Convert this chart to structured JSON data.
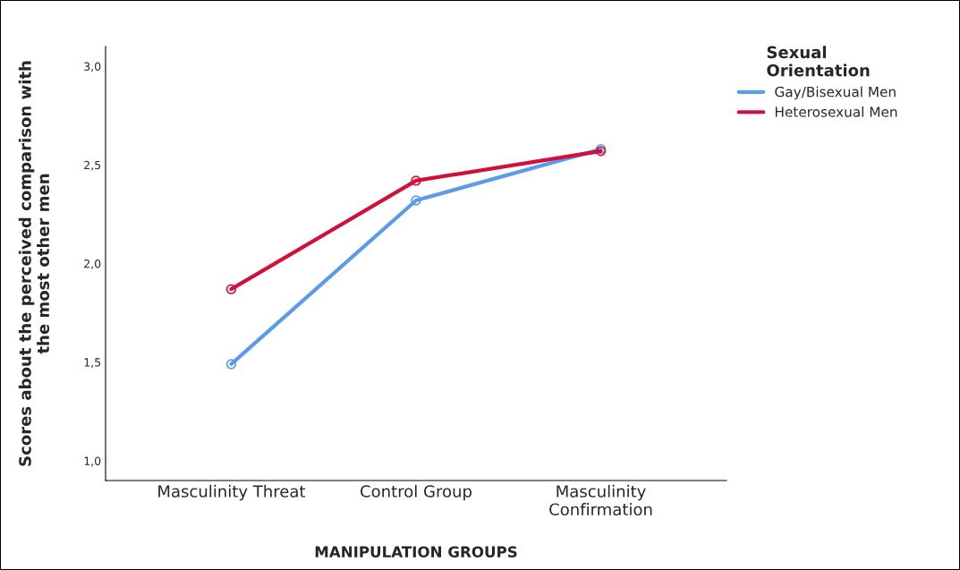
{
  "chart_data": {
    "type": "line",
    "xlabel": "MANIPULATION GROUPS",
    "ylabel": "Scores about the perceived comparison with\nthe most other men",
    "legend_title": "Sexual\nOrientation",
    "categories": [
      "Masculinity Threat",
      "Control Group",
      "Masculinity\nConfirmation"
    ],
    "series": [
      {
        "name": "Gay/Bisexual Men",
        "color": "#5b9be8",
        "values": [
          1.49,
          2.32,
          2.58
        ]
      },
      {
        "name": "Heterosexual Men",
        "color": "#d0103a",
        "values": [
          1.87,
          2.42,
          2.57
        ]
      }
    ],
    "ylim": [
      0.9,
      3.1
    ],
    "yticks": [
      {
        "value": 1.0,
        "label": "1,0"
      },
      {
        "value": 1.5,
        "label": "1,5"
      },
      {
        "value": 2.0,
        "label": "2,0"
      },
      {
        "value": 2.5,
        "label": "2,5"
      },
      {
        "value": 3.0,
        "label": "3,0"
      }
    ],
    "grid": false,
    "legend": "top right",
    "marker": "circle",
    "line_style": "solid"
  }
}
